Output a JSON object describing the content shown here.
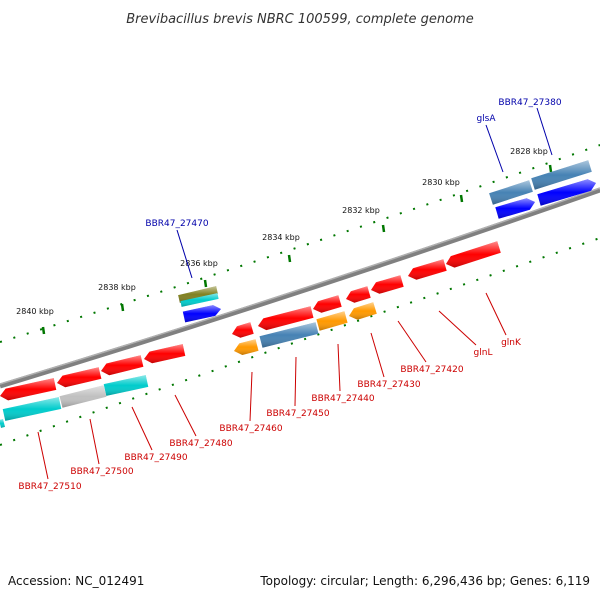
{
  "title": "Brevibacillus brevis NBRC 100599, complete genome",
  "footer": {
    "accession": "Accession: NC_012491",
    "topology": "Topology: circular; Length: 6,296,436 bp; Genes: 6,119"
  },
  "colors": {
    "backbone": "#808080",
    "tick": "#007700",
    "label_forward": "#0000aa",
    "label_reverse": "#cc0000",
    "red": "#ff0000",
    "blue": "#0000ff",
    "steelblue": "#4682b4",
    "cyan": "#00cccc",
    "grey": "#c0c0c0",
    "orange": "#ff9900",
    "olive": "#808020"
  },
  "ticks": [
    {
      "label": "2828 kbp"
    },
    {
      "label": "2830 kbp"
    },
    {
      "label": "2832 kbp"
    },
    {
      "label": "2834 kbp"
    },
    {
      "label": "2836 kbp"
    },
    {
      "label": "2838 kbp"
    },
    {
      "label": "2840 kbp"
    }
  ],
  "labels": [
    {
      "text": "BBR47_27380",
      "strand": "forward"
    },
    {
      "text": "glsA",
      "strand": "forward"
    },
    {
      "text": "BBR47_27470",
      "strand": "forward"
    },
    {
      "text": "glnK",
      "strand": "reverse"
    },
    {
      "text": "glnL",
      "strand": "reverse"
    },
    {
      "text": "BBR47_27420",
      "strand": "reverse"
    },
    {
      "text": "BBR47_27430",
      "strand": "reverse"
    },
    {
      "text": "BBR47_27440",
      "strand": "reverse"
    },
    {
      "text": "BBR47_27450",
      "strand": "reverse"
    },
    {
      "text": "BBR47_27460",
      "strand": "reverse"
    },
    {
      "text": "BBR47_27480",
      "strand": "reverse"
    },
    {
      "text": "BBR47_27490",
      "strand": "reverse"
    },
    {
      "text": "BBR47_27500",
      "strand": "reverse"
    },
    {
      "text": "BBR47_27510",
      "strand": "reverse"
    }
  ]
}
